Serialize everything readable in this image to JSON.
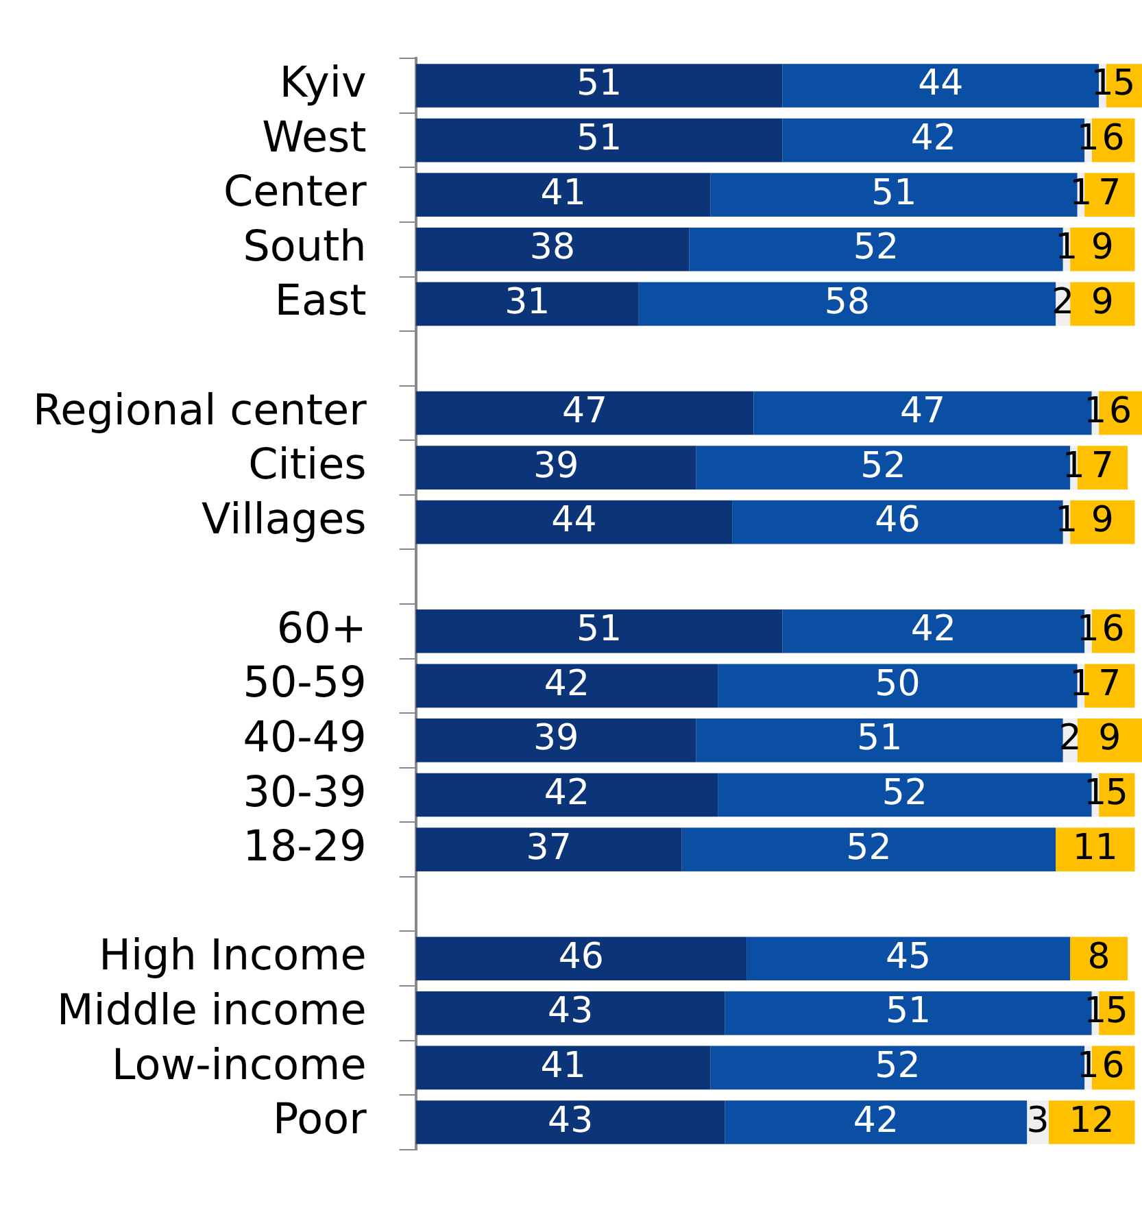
{
  "chart_data": {
    "type": "bar",
    "orientation": "horizontal",
    "stacked": true,
    "data_labels": true,
    "legend": false,
    "grid": false,
    "tick_labels": "y",
    "xlim": [
      0,
      101
    ],
    "categories": [
      "Kyiv",
      "West",
      "Center",
      "South",
      "East",
      null,
      "Regional center",
      "Cities",
      "Villages",
      null,
      "60+",
      "50-59",
      "40-49",
      "30-39",
      "18-29",
      null,
      "High Income",
      "Middle income",
      "Low-income",
      "Poor"
    ],
    "series": [
      {
        "color": "#0b3479",
        "values": [
          51,
          51,
          41,
          38,
          31,
          null,
          47,
          39,
          44,
          null,
          51,
          42,
          39,
          42,
          37,
          null,
          46,
          43,
          41,
          43
        ]
      },
      {
        "color": "#0a4fa3",
        "values": [
          44,
          42,
          51,
          52,
          58,
          null,
          47,
          52,
          46,
          null,
          42,
          50,
          51,
          52,
          52,
          null,
          45,
          51,
          52,
          42
        ]
      },
      {
        "color": "#efefef",
        "values": [
          1,
          1,
          1,
          1,
          2,
          null,
          1,
          1,
          1,
          null,
          1,
          1,
          2,
          1,
          null,
          null,
          null,
          1,
          1,
          3
        ]
      },
      {
        "color": "#ffc000",
        "values": [
          5,
          6,
          7,
          9,
          9,
          null,
          6,
          7,
          9,
          null,
          6,
          7,
          9,
          5,
          11,
          null,
          8,
          5,
          6,
          12
        ]
      }
    ]
  }
}
